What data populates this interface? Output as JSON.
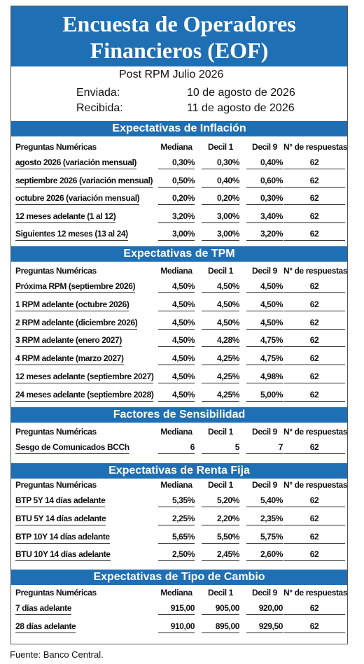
{
  "header": {
    "title_lines": [
      "Encuesta de Operadores",
      "Financieros (EOF)"
    ],
    "subtitle": "Post RPM Julio 2026",
    "sent_label": "Enviada:",
    "sent_date": "10 de agosto de 2026",
    "received_label": "Recibida:",
    "received_date": "11 de agosto de 2026"
  },
  "sections": [
    {
      "title": "Expectativas de Inflación",
      "columns": [
        "Preguntas Numéricas",
        "Mediana",
        "Decil 1",
        "Decil 9",
        "N° de respuestas"
      ],
      "rows": [
        [
          "agosto 2026 (variación mensual)",
          "0,30%",
          "0,30%",
          "0,40%",
          "62"
        ],
        [
          "septiembre 2026 (variación mensual)",
          "0,50%",
          "0,40%",
          "0,60%",
          "62"
        ],
        [
          "octubre 2026 (variación mensual)",
          "0,20%",
          "0,20%",
          "0,30%",
          "62"
        ],
        [
          "12 meses adelante (1 al 12)",
          "3,20%",
          "3,00%",
          "3,40%",
          "62"
        ],
        [
          "Siguientes 12 meses (13 al 24)",
          "3,00%",
          "3,00%",
          "3,20%",
          "62"
        ]
      ]
    },
    {
      "title": "Expectativas de TPM",
      "columns": [
        "Preguntas Numéricas",
        "Mediana",
        "Decil 1",
        "Decil 9",
        "N° de respuestas"
      ],
      "rows": [
        [
          "Próxima RPM (septiembre 2026)",
          "4,50%",
          "4,50%",
          "4,50%",
          "62"
        ],
        [
          "1 RPM adelante (octubre 2026)",
          "4,50%",
          "4,50%",
          "4,50%",
          "62"
        ],
        [
          "2 RPM adelante (diciembre 2026)",
          "4,50%",
          "4,50%",
          "4,50%",
          "62"
        ],
        [
          "3 RPM adelante (enero 2027)",
          "4,50%",
          "4,28%",
          "4,75%",
          "62"
        ],
        [
          "4 RPM adelante (marzo 2027)",
          "4,50%",
          "4,25%",
          "4,75%",
          "62"
        ],
        [
          "12 meses adelante (septiembre 2027)",
          "4,50%",
          "4,25%",
          "4,98%",
          "62"
        ],
        [
          "24 meses adelante (septiembre 2028)",
          "4,50%",
          "4,25%",
          "5,00%",
          "62"
        ]
      ]
    },
    {
      "title": "Factores de Sensibilidad",
      "columns": [
        "Preguntas Numéricas",
        "Mediana",
        "Decil 1",
        "Decil 9",
        "N° de respuestas"
      ],
      "rows": [
        [
          "Sesgo de Comunicados BCCh",
          "6",
          "5",
          "7",
          "62"
        ]
      ]
    },
    {
      "title": "Expectativas  de Renta Fija",
      "columns": [
        "Preguntas Numéricas",
        "Mediana",
        "Decil 1",
        "Decil 9",
        "N° de respuestas"
      ],
      "rows": [
        [
          "BTP 5Y 14 días adelante",
          "5,35%",
          "5,20%",
          "5,40%",
          "62"
        ],
        [
          "BTU 5Y 14 días adelante",
          "2,25%",
          "2,20%",
          "2,35%",
          "62"
        ],
        [
          "BTP 10Y 14 días adelante",
          "5,65%",
          "5,50%",
          "5,75%",
          "62"
        ],
        [
          "BTU 10Y 14 días adelante",
          "2,50%",
          "2,45%",
          "2,60%",
          "62"
        ]
      ]
    },
    {
      "title": "Expectativas  de Tipo de Cambio",
      "columns": [
        "Preguntas Numéricas",
        "Mediana",
        "Decil 1",
        "Decil 9",
        "N° de respuestas"
      ],
      "rows": [
        [
          "7 días adelante",
          "915,00",
          "905,00",
          "920,00",
          "62"
        ],
        [
          "28 días adelante",
          "910,00",
          "895,00",
          "929,50",
          "62"
        ]
      ]
    }
  ],
  "source": "Fuente: Banco Central."
}
